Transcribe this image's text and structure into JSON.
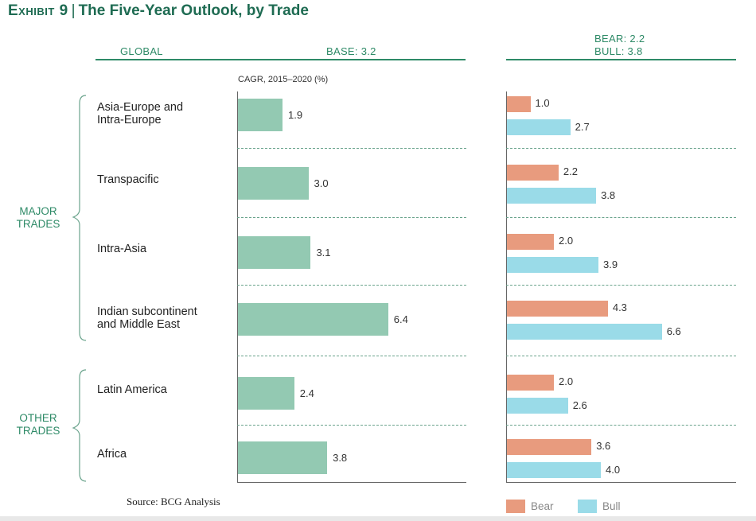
{
  "title": {
    "exhibit": "Exhibit 9",
    "separator": "|",
    "text": "The Five-Year Outlook, by Trade"
  },
  "header": {
    "global": "GLOBAL",
    "base": "BASE: 3.2",
    "bear": "BEAR: 2.2",
    "bull": "BULL: 3.8"
  },
  "source": "Source: BCG Analysis",
  "colors": {
    "accent": "#2e8a67",
    "base": "#93c9b2",
    "bear": "#e89b7e",
    "bull": "#9adbe8"
  },
  "chart_data": {
    "type": "bar",
    "title": "The Five-Year Outlook, by Trade",
    "xlabel": "CAGR, 2015–2020 (%)",
    "categories": [
      "Asia-Europe and\nIntra-Europe",
      "Transpacific",
      "Intra-Asia",
      "Indian subcontinent\nand Middle East",
      "Latin America",
      "Africa"
    ],
    "groups": [
      {
        "name": "MAJOR\nTRADES",
        "members": [
          0,
          1,
          2,
          3
        ]
      },
      {
        "name": "OTHER\nTRADES",
        "members": [
          4,
          5
        ]
      }
    ],
    "series": [
      {
        "name": "Base",
        "values": [
          1.9,
          3.0,
          3.1,
          6.4,
          2.4,
          3.8
        ]
      },
      {
        "name": "Bear",
        "values": [
          1.0,
          2.2,
          2.0,
          4.3,
          2.0,
          3.6
        ]
      },
      {
        "name": "Bull",
        "values": [
          2.7,
          3.8,
          3.9,
          6.6,
          2.6,
          4.0
        ]
      }
    ],
    "legend": [
      "Bear",
      "Bull"
    ],
    "xlim": [
      0,
      7
    ]
  }
}
